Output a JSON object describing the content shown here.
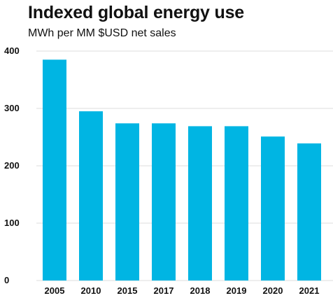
{
  "chart_data": {
    "type": "bar",
    "title": "Indexed global energy use",
    "subtitle": "MWh per MM $USD net sales",
    "xlabel": "",
    "ylabel": "",
    "categories": [
      "2005",
      "2010",
      "2015",
      "2017",
      "2018",
      "2019",
      "2020",
      "2021"
    ],
    "values": [
      385,
      295,
      274,
      274,
      269,
      269,
      251,
      239
    ],
    "ylim": [
      0,
      400
    ],
    "yticks": [
      0,
      100,
      200,
      300,
      400
    ],
    "grid": true,
    "bar_color": "#00b5e3",
    "grid_color": "#dcdcdc"
  }
}
